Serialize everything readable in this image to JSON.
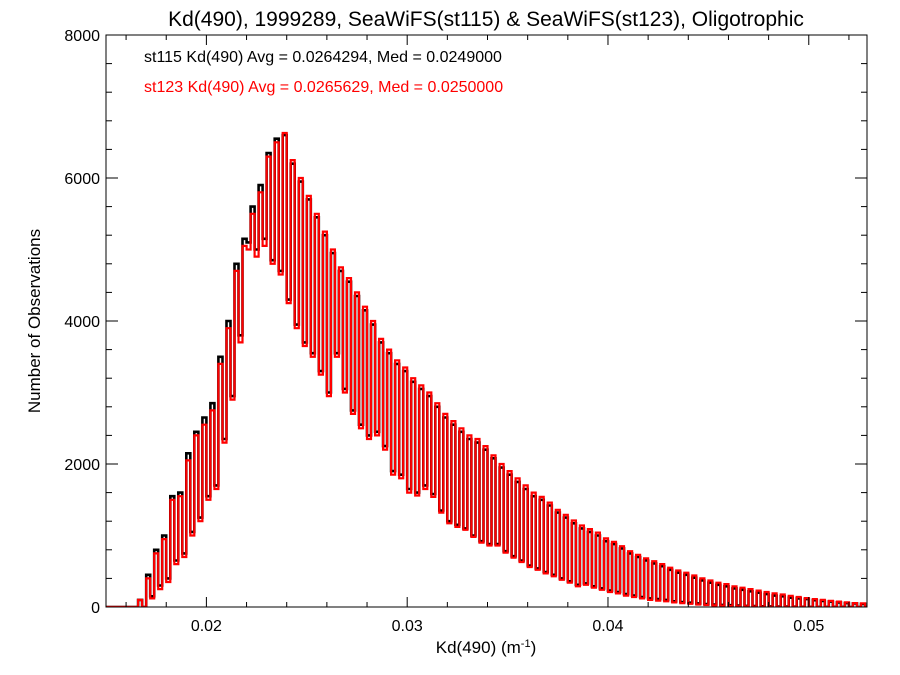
{
  "chart_data": {
    "type": "line",
    "title": "Kd(490), 1999289, SeaWiFS(st115) & SeaWiFS(st123), Oligotrophic",
    "xlabel_main": "Kd(490) (m",
    "xlabel_sup": "-1",
    "xlabel_close": ")",
    "ylabel": "Number of Observations",
    "xlim": [
      0.015,
      0.0529
    ],
    "ylim": [
      0,
      8000
    ],
    "xticks": [
      0.02,
      0.03,
      0.04,
      0.05
    ],
    "xtick_labels": [
      "0.02",
      "0.03",
      "0.04",
      "0.05"
    ],
    "yticks": [
      0,
      2000,
      4000,
      6000,
      8000
    ],
    "ytick_labels": [
      "0",
      "2000",
      "4000",
      "6000",
      "8000"
    ],
    "grid": false,
    "series": [
      {
        "label": "st115 Kd(490) Avg = 0.0264294, Med = 0.0249000",
        "color": "#000000",
        "high": [
          0,
          0,
          0,
          0,
          100,
          450,
          800,
          1000,
          1550,
          1600,
          2150,
          2450,
          2650,
          2850,
          3500,
          4000,
          4800,
          5150,
          5600,
          5900,
          6350,
          6550,
          6600,
          6200,
          5950,
          5700,
          5450,
          5200,
          4950,
          4700,
          4550,
          4350,
          4150,
          3950,
          3700,
          3550,
          3400,
          3300,
          3150,
          3050,
          2950,
          2800,
          2650,
          2550,
          2450,
          2350,
          2300,
          2200,
          2080,
          1950,
          1850,
          1750,
          1650,
          1550,
          1500,
          1420,
          1320,
          1250,
          1170,
          1100,
          1050,
          1000,
          920,
          880,
          820,
          750,
          700,
          650,
          610,
          570,
          520,
          480,
          450,
          410,
          370,
          340,
          310,
          290,
          260,
          240,
          220,
          200,
          180,
          160,
          150,
          130,
          120,
          110,
          95,
          85,
          75,
          65,
          55,
          50,
          45,
          40,
          35,
          30,
          25,
          20
        ],
        "low": [
          0,
          0,
          0,
          0,
          0,
          150,
          300,
          400,
          650,
          750,
          1050,
          1250,
          1550,
          1700,
          2350,
          2950,
          3800,
          5100,
          5000,
          5150,
          4850,
          4700,
          4300,
          3950,
          3700,
          3550,
          3300,
          3000,
          3550,
          3050,
          2750,
          2550,
          2400,
          2450,
          2250,
          1900,
          1850,
          1650,
          1600,
          1700,
          1580,
          1350,
          1200,
          1150,
          1100,
          1000,
          920,
          880,
          880,
          780,
          710,
          650,
          580,
          540,
          490,
          450,
          400,
          360,
          310,
          330,
          290,
          260,
          230,
          210,
          180,
          160,
          140,
          120,
          110,
          100,
          80,
          70,
          60,
          50,
          40,
          35,
          30,
          25,
          20,
          15,
          12,
          10,
          8,
          6,
          5,
          4,
          3,
          2,
          2,
          1,
          1,
          1,
          0,
          0,
          0,
          0,
          0,
          0,
          0,
          0
        ]
      },
      {
        "label": "st123 Kd(490) Avg = 0.0265629, Med = 0.0250000",
        "color": "#ff0000",
        "high": [
          0,
          0,
          0,
          0,
          100,
          400,
          750,
          950,
          1500,
          1550,
          2050,
          2400,
          2550,
          2750,
          3400,
          3900,
          4700,
          5050,
          5500,
          5800,
          6300,
          6500,
          6630,
          6250,
          6000,
          5750,
          5500,
          5250,
          5000,
          4750,
          4600,
          4400,
          4200,
          4000,
          3750,
          3600,
          3450,
          3350,
          3200,
          3100,
          3000,
          2850,
          2700,
          2600,
          2500,
          2400,
          2350,
          2250,
          2120,
          2000,
          1900,
          1800,
          1700,
          1600,
          1540,
          1460,
          1360,
          1290,
          1210,
          1140,
          1090,
          1040,
          960,
          910,
          850,
          780,
          730,
          680,
          640,
          600,
          550,
          510,
          480,
          440,
          400,
          370,
          340,
          320,
          290,
          270,
          250,
          230,
          210,
          190,
          175,
          155,
          140,
          125,
          110,
          100,
          85,
          75,
          65,
          55,
          50,
          45,
          40,
          35,
          30,
          25
        ],
        "low": [
          0,
          0,
          0,
          0,
          0,
          120,
          250,
          350,
          600,
          700,
          1000,
          1200,
          1500,
          1650,
          2300,
          2900,
          3700,
          5000,
          4900,
          5050,
          4800,
          4650,
          4250,
          3900,
          3650,
          3500,
          3250,
          2950,
          3500,
          3000,
          2700,
          2500,
          2350,
          2400,
          2200,
          1850,
          1800,
          1600,
          1560,
          1650,
          1540,
          1320,
          1170,
          1120,
          1080,
          980,
          900,
          860,
          860,
          760,
          690,
          630,
          560,
          520,
          470,
          430,
          380,
          340,
          290,
          310,
          270,
          240,
          210,
          190,
          160,
          140,
          120,
          100,
          90,
          80,
          65,
          55,
          45,
          35,
          28,
          22,
          18,
          14,
          10,
          8,
          6,
          4,
          3,
          2,
          2,
          1,
          1,
          1,
          0,
          0,
          0,
          0,
          0,
          0,
          0,
          0,
          0,
          0,
          0,
          0
        ]
      }
    ]
  }
}
